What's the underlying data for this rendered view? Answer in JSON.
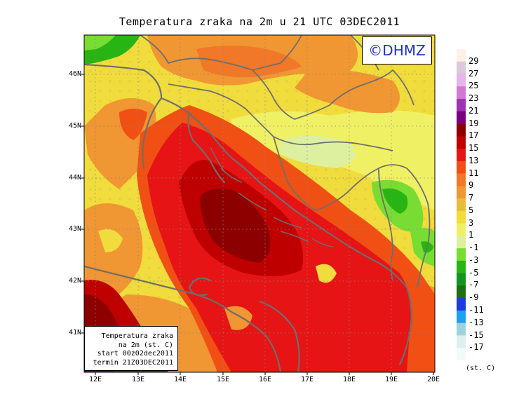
{
  "title": "Temperatura zraka na 2m u 21 UTC 03DEC2011",
  "watermark": "©DHMZ",
  "info": {
    "line1": "Temperatura zraka",
    "line2": "na 2m (st. C)",
    "line3": "start 00z02dec2011",
    "line4": "termin 21Z03DEC2011"
  },
  "latitudes": [
    "46N",
    "45N",
    "44N",
    "43N",
    "42N",
    "41N"
  ],
  "longitudes": [
    "12E",
    "13E",
    "14E",
    "15E",
    "16E",
    "17E",
    "18E",
    "19E",
    "20E"
  ],
  "legend": {
    "labels": [
      "29",
      "27",
      "25",
      "23",
      "21",
      "19",
      "17",
      "15",
      "13",
      "11",
      "9",
      "7",
      "5",
      "3",
      "1",
      "-1",
      "-3",
      "-5",
      "-7",
      "-9",
      "-11",
      "-13",
      "-15",
      "-17"
    ],
    "colors": [
      "#fff0e6",
      "#dcc8dc",
      "#e6b4e6",
      "#d278d2",
      "#a032b4",
      "#780082",
      "#8c0000",
      "#be0000",
      "#e61414",
      "#f05014",
      "#f07828",
      "#f09632",
      "#e6be3c",
      "#f0dc3c",
      "#f0f064",
      "#dcf0a0",
      "#78dc32",
      "#28b414",
      "#14961e",
      "#1e6e14",
      "#1e3cdc",
      "#1ea0f0",
      "#a0d2dc",
      "#dcf0f0",
      "#f0fafa"
    ],
    "units": "(st. C)"
  }
}
